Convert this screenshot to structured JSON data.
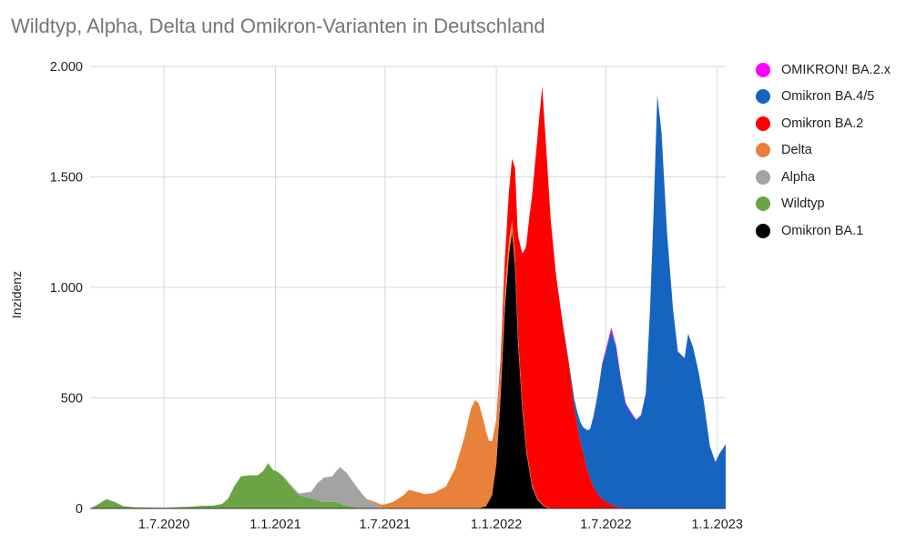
{
  "chart_data": {
    "type": "area",
    "title": "Wildtyp, Alpha, Delta und Omikron-Varianten in Deutschland",
    "xlabel": "",
    "ylabel": "Inzidenz",
    "ylim": [
      0,
      2000
    ],
    "xlim": [
      "2020-03-01",
      "2023-01-15"
    ],
    "stacked": true,
    "grid": true,
    "legend_position": "right",
    "x_ticks": [
      {
        "date": "2020-07-01",
        "label": "1.7.2020"
      },
      {
        "date": "2021-01-01",
        "label": "1.1.2021"
      },
      {
        "date": "2021-07-01",
        "label": "1.7.2021"
      },
      {
        "date": "2022-01-01",
        "label": "1.1.2022"
      },
      {
        "date": "2022-07-01",
        "label": "1.7.2022"
      },
      {
        "date": "2023-01-01",
        "label": "1.1.2023"
      }
    ],
    "y_ticks": [
      {
        "value": 0,
        "label": "0"
      },
      {
        "value": 500,
        "label": "500"
      },
      {
        "value": 1000,
        "label": "1.000"
      },
      {
        "value": 1500,
        "label": "1.500"
      },
      {
        "value": 2000,
        "label": "2.000"
      }
    ],
    "series": [
      {
        "name": "Omikron BA.1",
        "color": "#000000",
        "points": [
          [
            "2021-12-01",
            0
          ],
          [
            "2021-12-15",
            10
          ],
          [
            "2021-12-25",
            60
          ],
          [
            "2022-01-01",
            200
          ],
          [
            "2022-01-08",
            500
          ],
          [
            "2022-01-15",
            900
          ],
          [
            "2022-01-22",
            1150
          ],
          [
            "2022-01-27",
            1250
          ],
          [
            "2022-02-01",
            1100
          ],
          [
            "2022-02-06",
            750
          ],
          [
            "2022-02-13",
            450
          ],
          [
            "2022-02-20",
            250
          ],
          [
            "2022-03-01",
            100
          ],
          [
            "2022-03-10",
            40
          ],
          [
            "2022-03-20",
            10
          ],
          [
            "2022-04-01",
            0
          ]
        ]
      },
      {
        "name": "Wildtyp",
        "color": "#6aa443",
        "points": [
          [
            "2020-03-01",
            0
          ],
          [
            "2020-03-15",
            20
          ],
          [
            "2020-03-28",
            42
          ],
          [
            "2020-04-10",
            30
          ],
          [
            "2020-04-25",
            10
          ],
          [
            "2020-05-15",
            5
          ],
          [
            "2020-07-01",
            3
          ],
          [
            "2020-08-15",
            8
          ],
          [
            "2020-09-01",
            12
          ],
          [
            "2020-09-20",
            13
          ],
          [
            "2020-10-05",
            20
          ],
          [
            "2020-10-15",
            45
          ],
          [
            "2020-10-25",
            100
          ],
          [
            "2020-11-05",
            145
          ],
          [
            "2020-11-20",
            150
          ],
          [
            "2020-12-03",
            150
          ],
          [
            "2020-12-12",
            170
          ],
          [
            "2020-12-20",
            205
          ],
          [
            "2020-12-28",
            175
          ],
          [
            "2021-01-05",
            165
          ],
          [
            "2021-01-15",
            140
          ],
          [
            "2021-01-25",
            105
          ],
          [
            "2021-02-08",
            60
          ],
          [
            "2021-03-01",
            45
          ],
          [
            "2021-03-20",
            30
          ],
          [
            "2021-04-10",
            30
          ],
          [
            "2021-04-25",
            15
          ],
          [
            "2021-05-15",
            5
          ],
          [
            "2021-06-01",
            0
          ]
        ]
      },
      {
        "name": "Alpha",
        "color": "#a3a3a3",
        "points": [
          [
            "2021-01-01",
            0
          ],
          [
            "2021-01-20",
            5
          ],
          [
            "2021-02-10",
            10
          ],
          [
            "2021-03-01",
            30
          ],
          [
            "2021-03-12",
            80
          ],
          [
            "2021-03-22",
            110
          ],
          [
            "2021-04-05",
            115
          ],
          [
            "2021-04-18",
            165
          ],
          [
            "2021-04-28",
            150
          ],
          [
            "2021-05-10",
            110
          ],
          [
            "2021-05-22",
            70
          ],
          [
            "2021-06-01",
            40
          ],
          [
            "2021-06-12",
            25
          ],
          [
            "2021-06-25",
            5
          ],
          [
            "2021-07-15",
            0
          ]
        ]
      },
      {
        "name": "Delta",
        "color": "#e8823a",
        "points": [
          [
            "2021-05-01",
            0
          ],
          [
            "2021-06-01",
            2
          ],
          [
            "2021-07-01",
            15
          ],
          [
            "2021-07-15",
            30
          ],
          [
            "2021-08-01",
            60
          ],
          [
            "2021-08-10",
            85
          ],
          [
            "2021-08-22",
            75
          ],
          [
            "2021-09-05",
            65
          ],
          [
            "2021-09-20",
            70
          ],
          [
            "2021-10-10",
            100
          ],
          [
            "2021-10-25",
            180
          ],
          [
            "2021-11-10",
            330
          ],
          [
            "2021-11-20",
            450
          ],
          [
            "2021-11-27",
            490
          ],
          [
            "2021-12-03",
            475
          ],
          [
            "2021-12-12",
            380
          ],
          [
            "2021-12-20",
            270
          ],
          [
            "2021-12-27",
            230
          ],
          [
            "2022-01-03",
            180
          ],
          [
            "2022-01-10",
            110
          ],
          [
            "2022-01-20",
            70
          ],
          [
            "2022-02-01",
            40
          ],
          [
            "2022-02-15",
            20
          ],
          [
            "2022-03-01",
            10
          ],
          [
            "2022-03-20",
            3
          ],
          [
            "2022-04-10",
            0
          ]
        ]
      },
      {
        "name": "Omikron BA.2",
        "color": "#ff0000",
        "points": [
          [
            "2021-12-20",
            0
          ],
          [
            "2022-01-01",
            5
          ],
          [
            "2022-01-08",
            40
          ],
          [
            "2022-01-15",
            130
          ],
          [
            "2022-01-20",
            200
          ],
          [
            "2022-01-27",
            280
          ],
          [
            "2022-02-01",
            400
          ],
          [
            "2022-02-05",
            420
          ],
          [
            "2022-02-10",
            580
          ],
          [
            "2022-02-18",
            850
          ],
          [
            "2022-02-25",
            1150
          ],
          [
            "2022-03-05",
            1450
          ],
          [
            "2022-03-12",
            1700
          ],
          [
            "2022-03-18",
            1890
          ],
          [
            "2022-03-25",
            1600
          ],
          [
            "2022-04-01",
            1300
          ],
          [
            "2022-04-10",
            1050
          ],
          [
            "2022-04-20",
            850
          ],
          [
            "2022-05-01",
            650
          ],
          [
            "2022-05-10",
            450
          ],
          [
            "2022-05-20",
            300
          ],
          [
            "2022-06-01",
            170
          ],
          [
            "2022-06-10",
            100
          ],
          [
            "2022-06-20",
            55
          ],
          [
            "2022-07-01",
            30
          ],
          [
            "2022-07-15",
            10
          ],
          [
            "2022-08-01",
            0
          ]
        ]
      },
      {
        "name": "Omikron BA.4/5",
        "color": "#1565c0",
        "points": [
          [
            "2022-04-15",
            0
          ],
          [
            "2022-05-01",
            10
          ],
          [
            "2022-05-15",
            60
          ],
          [
            "2022-05-25",
            120
          ],
          [
            "2022-06-05",
            220
          ],
          [
            "2022-06-15",
            400
          ],
          [
            "2022-06-25",
            610
          ],
          [
            "2022-07-05",
            730
          ],
          [
            "2022-07-10",
            790
          ],
          [
            "2022-07-18",
            720
          ],
          [
            "2022-07-26",
            580
          ],
          [
            "2022-08-03",
            470
          ],
          [
            "2022-08-12",
            430
          ],
          [
            "2022-08-20",
            400
          ],
          [
            "2022-08-28",
            420
          ],
          [
            "2022-09-05",
            520
          ],
          [
            "2022-09-12",
            900
          ],
          [
            "2022-09-18",
            1350
          ],
          [
            "2022-09-24",
            1870
          ],
          [
            "2022-10-01",
            1700
          ],
          [
            "2022-10-10",
            1250
          ],
          [
            "2022-10-20",
            900
          ],
          [
            "2022-10-28",
            710
          ],
          [
            "2022-11-08",
            680
          ],
          [
            "2022-11-14",
            790
          ],
          [
            "2022-11-22",
            730
          ],
          [
            "2022-12-01",
            620
          ],
          [
            "2022-12-10",
            480
          ],
          [
            "2022-12-20",
            280
          ],
          [
            "2022-12-29",
            210
          ],
          [
            "2023-01-05",
            250
          ],
          [
            "2023-01-15",
            290
          ]
        ]
      },
      {
        "name": "OMIKRON! BA.2.x",
        "color": "#ff00ff",
        "points": [
          [
            "2022-06-01",
            0
          ],
          [
            "2022-06-25",
            5
          ],
          [
            "2022-07-10",
            12
          ],
          [
            "2022-07-25",
            8
          ],
          [
            "2022-08-20",
            3
          ],
          [
            "2022-09-20",
            2
          ],
          [
            "2022-11-01",
            1
          ],
          [
            "2023-01-15",
            0
          ]
        ]
      }
    ],
    "legend": [
      {
        "label": "OMIKRON! BA.2.x",
        "color": "#ff00ff"
      },
      {
        "label": "Omikron BA.4/5",
        "color": "#1565c0"
      },
      {
        "label": "Omikron BA.2",
        "color": "#ff0000"
      },
      {
        "label": "Delta",
        "color": "#e8823a"
      },
      {
        "label": "Alpha",
        "color": "#a3a3a3"
      },
      {
        "label": "Wildtyp",
        "color": "#6aa443"
      },
      {
        "label": "Omikron BA.1",
        "color": "#000000"
      }
    ]
  }
}
